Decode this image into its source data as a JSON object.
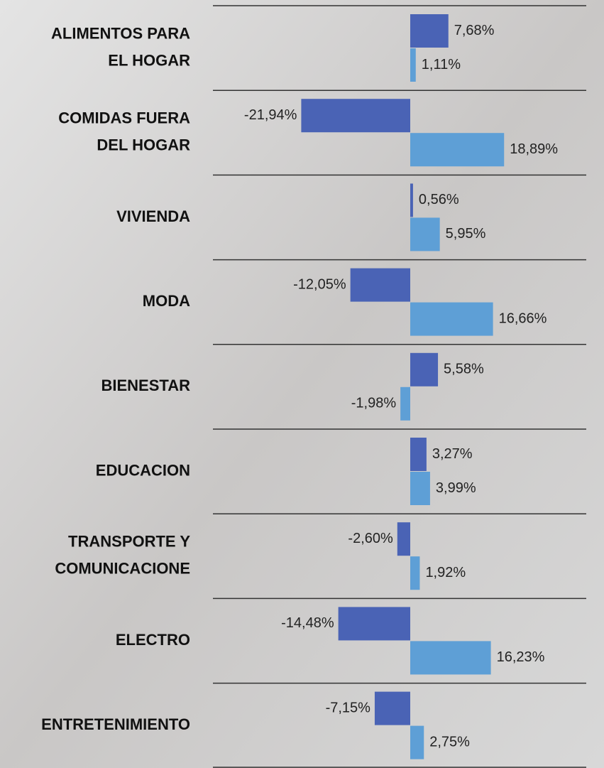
{
  "chart_data": {
    "type": "bar",
    "orientation": "horizontal",
    "categories": [
      [
        "ALIMENTOS PARA",
        "EL HOGAR"
      ],
      [
        "COMIDAS FUERA",
        "DEL HOGAR"
      ],
      [
        "VIVIENDA"
      ],
      [
        "MODA"
      ],
      [
        "BIENESTAR"
      ],
      [
        "EDUCACION"
      ],
      [
        "TRANSPORTE Y",
        "COMUNICACIONE"
      ],
      [
        "ELECTRO"
      ],
      [
        "ENTRETENIMIENTO"
      ]
    ],
    "series": [
      {
        "color": "#4a63b5",
        "values": [
          7.68,
          -21.94,
          0.56,
          -12.05,
          5.58,
          3.27,
          -2.6,
          -14.48,
          -7.15
        ],
        "value_labels": [
          "7,68%",
          "-21,94%",
          "0,56%",
          "-12,05%",
          "5,58%",
          "3,27%",
          "-2,60%",
          "-14,48%",
          "-7,15%"
        ]
      },
      {
        "color": "#5e9fd6",
        "values": [
          1.11,
          18.89,
          5.95,
          16.66,
          -1.98,
          3.99,
          1.92,
          16.23,
          2.75
        ],
        "value_labels": [
          "1,11%",
          "18,89%",
          "5,95%",
          "16,66%",
          "-1,98%",
          "3,99%",
          "1,92%",
          "16,23%",
          "2,75%"
        ]
      }
    ]
  }
}
